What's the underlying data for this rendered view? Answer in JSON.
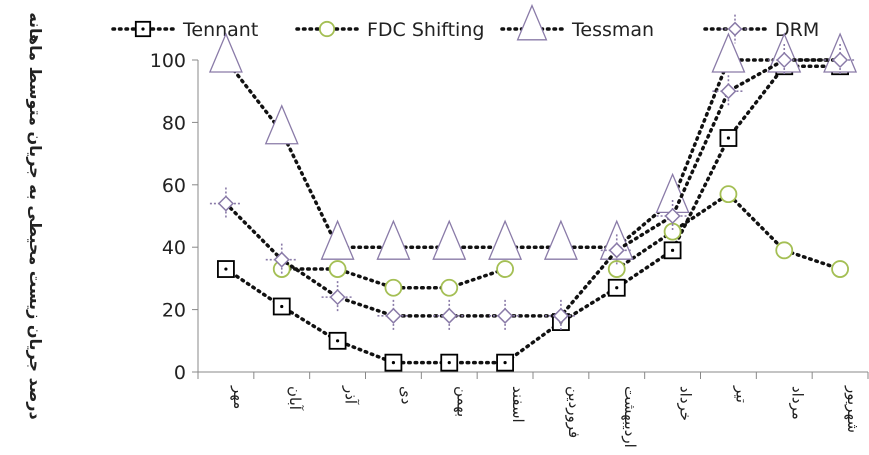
{
  "chart_data": {
    "type": "line",
    "title": "",
    "xlabel": "",
    "ylabel": "درصد جریان زیست محیطی به جریان متوسط ماهانه",
    "ylim": [
      0,
      100
    ],
    "yticks": [
      0,
      20,
      40,
      60,
      80,
      100
    ],
    "grid": false,
    "legend_position": "top",
    "categories": [
      "مهر",
      "آبان",
      "آذر",
      "دی",
      "بهمن",
      "اسفند",
      "فروردین",
      "اردیبهشت",
      "خرداد",
      "تیر",
      "مرداد",
      "شهریور"
    ],
    "series": [
      {
        "name": "Tennant",
        "marker": "square",
        "color": "#000000",
        "values": [
          33,
          21,
          10,
          3,
          3,
          3,
          16,
          27,
          39,
          75,
          98,
          98
        ]
      },
      {
        "name": "FDC Shifting",
        "marker": "circle",
        "color": "#a4bf54",
        "values": [
          null,
          33,
          33,
          27,
          27,
          33,
          null,
          33,
          45,
          57,
          39,
          33
        ]
      },
      {
        "name": "Tessman",
        "marker": "triangle",
        "color": "#8a7ba8",
        "values": [
          100,
          77,
          40,
          40,
          40,
          40,
          40,
          40,
          55,
          100,
          100,
          100
        ]
      },
      {
        "name": "DRM",
        "marker": "diamond",
        "color": "#8a7ba8",
        "values": [
          54,
          36,
          24,
          18,
          18,
          18,
          18,
          39,
          50,
          90,
          100,
          100
        ]
      }
    ]
  }
}
